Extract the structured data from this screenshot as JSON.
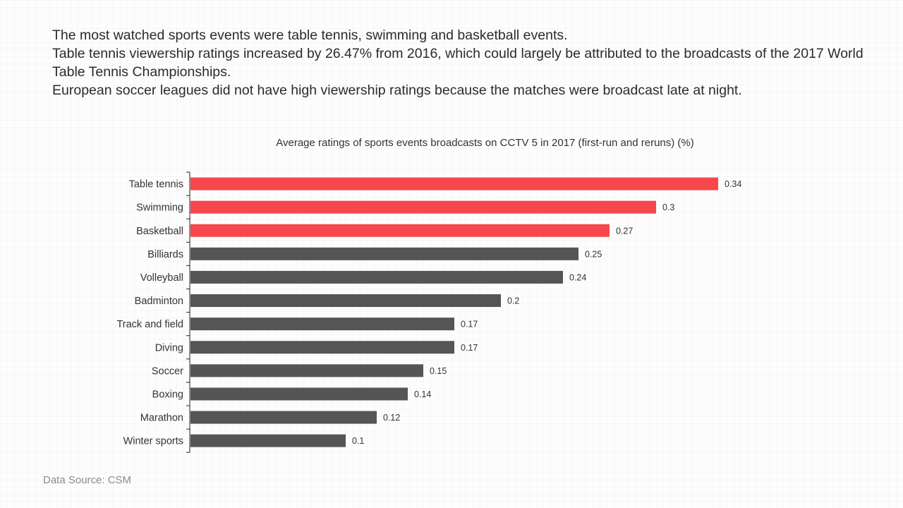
{
  "summary": {
    "line1": "The most watched sports events were table tennis, swimming and basketball events.",
    "line2": "Table tennis viewership ratings increased by 26.47% from 2016, which could largely be attributed to the broadcasts of the 2017 World Table Tennis Championships.",
    "line3": "European soccer leagues did not have high viewership ratings because the matches were broadcast late at night."
  },
  "source": "Data Source: CSM",
  "chart_data": {
    "type": "bar",
    "orientation": "horizontal",
    "title": "Average ratings of sports events broadcasts on CCTV 5 in 2017 (first-run and reruns) (%)",
    "categories": [
      "Table tennis",
      "Swimming",
      "Basketball",
      "Billiards",
      "Volleyball",
      "Badminton",
      "Track and field",
      "Diving",
      "Soccer",
      "Boxing",
      "Marathon",
      "Winter sports"
    ],
    "values": [
      0.34,
      0.3,
      0.27,
      0.25,
      0.24,
      0.2,
      0.17,
      0.17,
      0.15,
      0.14,
      0.12,
      0.1
    ],
    "highlight_count": 3,
    "colors": {
      "highlight": "#f5474c",
      "default": "#555555",
      "label": "#333333"
    },
    "xlim": [
      0,
      0.34
    ],
    "grid": false,
    "legend": "none"
  }
}
